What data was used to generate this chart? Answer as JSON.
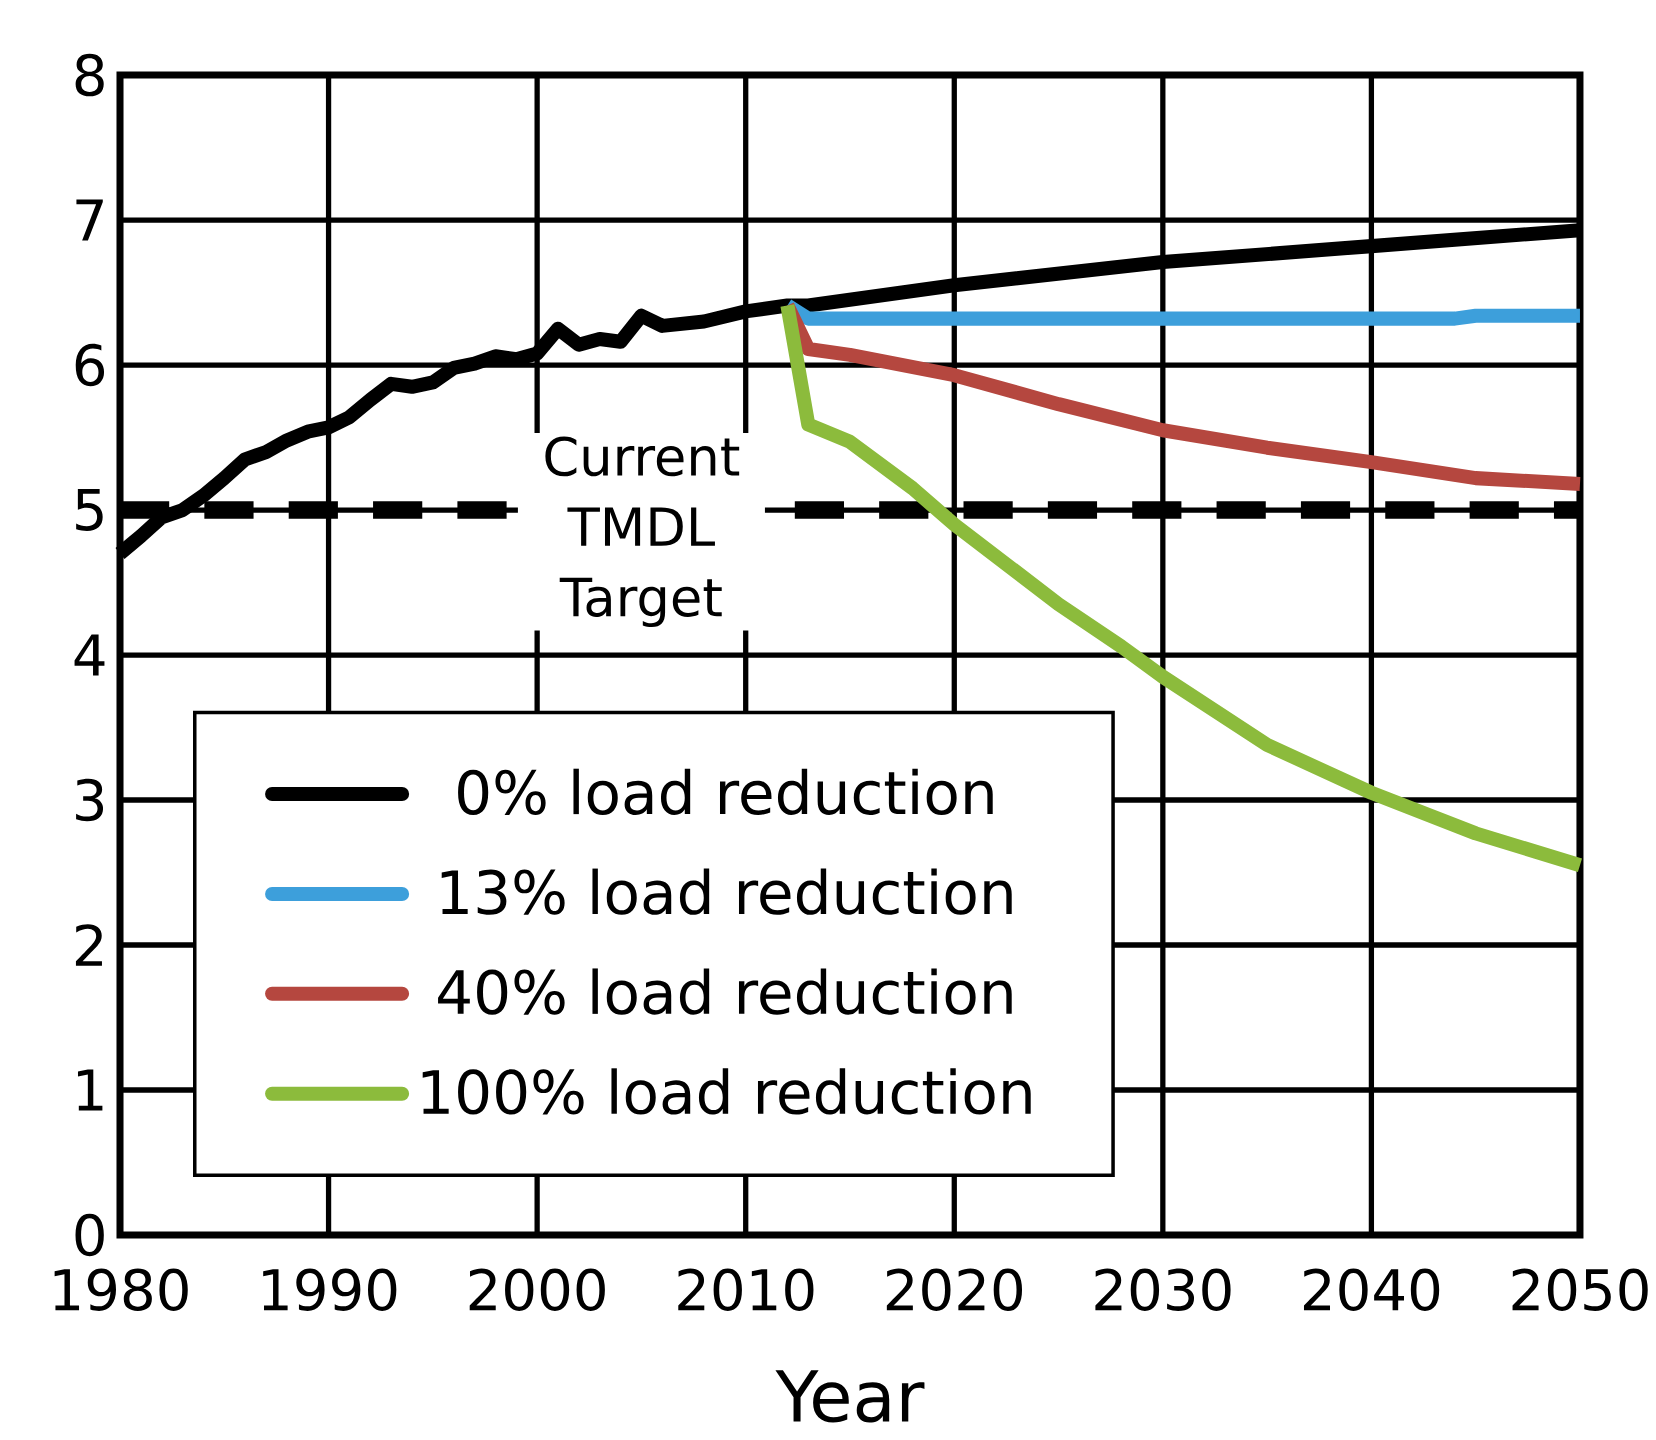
{
  "chart_data": {
    "type": "line",
    "xlabel": "Year",
    "xlim": [
      1980,
      2050
    ],
    "xticks": [
      1980,
      1990,
      2000,
      2010,
      2020,
      2030,
      2040,
      2050
    ],
    "ylim": [
      0,
      8
    ],
    "yticks": [
      0,
      1,
      2,
      3,
      4,
      5,
      6,
      7,
      8
    ],
    "grid": true,
    "legend": "bottom left",
    "line_style": "solid",
    "marker": "none",
    "series": [
      {
        "name": "0% load reduction",
        "color": "#000000",
        "x": [
          1980,
          1981,
          1982,
          1983,
          1984,
          1985,
          1986,
          1987,
          1988,
          1989,
          1990,
          1991,
          1992,
          1993,
          1994,
          1995,
          1996,
          1997,
          1998,
          1999,
          2000,
          2001,
          2002,
          2003,
          2004,
          2005,
          2006,
          2008,
          2010,
          2012,
          2013,
          2020,
          2030,
          2040,
          2050
        ],
        "values": [
          4.7,
          4.82,
          4.95,
          5.0,
          5.1,
          5.22,
          5.35,
          5.4,
          5.48,
          5.54,
          5.57,
          5.64,
          5.76,
          5.87,
          5.85,
          5.88,
          5.98,
          6.01,
          6.06,
          6.04,
          6.08,
          6.25,
          6.14,
          6.18,
          6.16,
          6.34,
          6.27,
          6.3,
          6.37,
          6.41,
          6.41,
          6.55,
          6.71,
          6.82,
          6.93
        ]
      },
      {
        "name": "13% load reduction",
        "color": "#3d9fdb",
        "x": [
          2012,
          2013,
          2044,
          2045,
          2050
        ],
        "values": [
          6.41,
          6.32,
          6.32,
          6.34,
          6.34
        ]
      },
      {
        "name": "40% load reduction",
        "color": "#b5473f",
        "x": [
          2012,
          2013,
          2015,
          2020,
          2025,
          2030,
          2035,
          2040,
          2045,
          2050
        ],
        "values": [
          6.41,
          6.11,
          6.07,
          5.93,
          5.73,
          5.55,
          5.43,
          5.33,
          5.22,
          5.18
        ]
      },
      {
        "name": "100% load reduction",
        "color": "#8cbb3c",
        "x": [
          2012,
          2013,
          2015,
          2018,
          2020,
          2025,
          2028,
          2030,
          2035,
          2040,
          2045,
          2050
        ],
        "values": [
          6.41,
          5.59,
          5.47,
          5.15,
          4.9,
          4.35,
          4.06,
          3.85,
          3.38,
          3.05,
          2.77,
          2.55
        ]
      }
    ],
    "ref_lines": [
      {
        "axis": "y",
        "value": 5,
        "label": "Current TMDL Target",
        "color": "#000000",
        "line_style": "dashed"
      }
    ]
  }
}
